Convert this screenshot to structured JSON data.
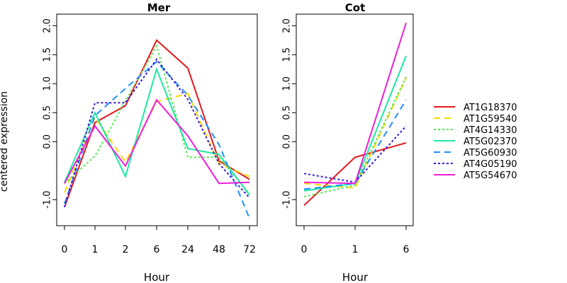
{
  "chart_data": [
    {
      "type": "line",
      "title": "Mer",
      "xlabel": "Hour",
      "ylabel": "centered expression",
      "categories": [
        "0",
        "1",
        "2",
        "6",
        "24",
        "48",
        "72"
      ],
      "ylim": [
        -1.45,
        2.2
      ],
      "yticks": [
        {
          "value": 2.0,
          "label": "2.0"
        },
        {
          "value": 1.5,
          "label": "1.5"
        },
        {
          "value": 1.0,
          "label": "1.0"
        },
        {
          "value": 0.5,
          "label": "0.5"
        },
        {
          "value": 0.0,
          "label": "0.0"
        },
        {
          "value": -1.0,
          "label": "-1.0"
        }
      ],
      "series": [
        {
          "name": "AT1G18370",
          "values": [
            -1.13,
            0.33,
            0.62,
            1.75,
            1.27,
            -0.33,
            -0.65
          ]
        },
        {
          "name": "AT1G59540",
          "values": [
            -0.88,
            0.42,
            -0.35,
            0.69,
            0.83,
            -0.38,
            -0.6
          ]
        },
        {
          "name": "AT4G14330",
          "values": [
            -0.72,
            -0.25,
            0.7,
            1.65,
            -0.27,
            -0.27,
            -0.9
          ]
        },
        {
          "name": "AT5G02370",
          "values": [
            -0.7,
            0.5,
            -0.6,
            1.25,
            -0.12,
            -0.22,
            -0.92
          ]
        },
        {
          "name": "AT5G60930",
          "values": [
            -1.07,
            0.45,
            0.92,
            1.38,
            0.8,
            -0.05,
            -1.32
          ]
        },
        {
          "name": "AT4G05190",
          "values": [
            -1.13,
            0.67,
            0.67,
            1.42,
            0.73,
            -0.38,
            -0.97
          ]
        },
        {
          "name": "AT5G54670",
          "values": [
            -0.72,
            0.27,
            -0.42,
            0.72,
            0.1,
            -0.72,
            -0.7
          ]
        }
      ]
    },
    {
      "type": "line",
      "title": "Cot",
      "xlabel": "Hour",
      "categories": [
        "0",
        "1",
        "6"
      ],
      "ylim": [
        -1.45,
        2.2
      ],
      "yticks": [
        {
          "value": 2.0,
          "label": "2.0"
        },
        {
          "value": 1.5,
          "label": "1.5"
        },
        {
          "value": 1.0,
          "label": "1.0"
        },
        {
          "value": 0.5,
          "label": "0.5"
        },
        {
          "value": 0.0,
          "label": "0.0"
        },
        {
          "value": -1.0,
          "label": "-1.0"
        }
      ],
      "series": [
        {
          "name": "AT1G18370",
          "values": [
            -1.1,
            -0.27,
            -0.02
          ]
        },
        {
          "name": "AT1G59540",
          "values": [
            -0.72,
            -0.8,
            1.1
          ]
        },
        {
          "name": "AT4G14330",
          "values": [
            -0.95,
            -0.75,
            1.12
          ]
        },
        {
          "name": "AT5G02370",
          "values": [
            -0.85,
            -0.72,
            1.48
          ]
        },
        {
          "name": "AT5G60930",
          "values": [
            -0.82,
            -0.72,
            0.72
          ]
        },
        {
          "name": "AT4G05190",
          "values": [
            -0.55,
            -0.7,
            0.27
          ]
        },
        {
          "name": "AT5G54670",
          "values": [
            -0.7,
            -0.72,
            2.05
          ]
        }
      ]
    }
  ],
  "legend": {
    "placement": "right",
    "entries": [
      {
        "label": "AT1G18370",
        "color": "#e41a1c",
        "dash": "solid"
      },
      {
        "label": "AT1G59540",
        "color": "#ffd700",
        "dash": "dashed"
      },
      {
        "label": "AT4G14330",
        "color": "#55e855",
        "dash": "dotted"
      },
      {
        "label": "AT5G02370",
        "color": "#1ee8a2",
        "dash": "solid"
      },
      {
        "label": "AT5G60930",
        "color": "#1e90ff",
        "dash": "dashed"
      },
      {
        "label": "AT4G05190",
        "color": "#3a17d6",
        "dash": "dotted"
      },
      {
        "label": "AT5G54670",
        "color": "#ee1fd6",
        "dash": "solid"
      }
    ]
  }
}
